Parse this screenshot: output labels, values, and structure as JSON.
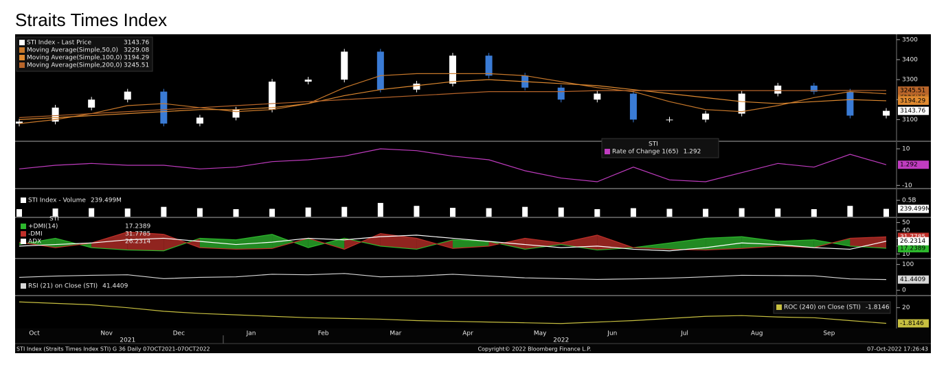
{
  "title": "Straits Times Index",
  "chart_data": [
    {
      "type": "candlestick",
      "name": "STI Index - Last Price",
      "color_up": "#ffffff",
      "color_down": "#3a7bd5",
      "open": [
        3080,
        3090,
        3160,
        3200,
        3240,
        3080,
        3110,
        3150,
        3290,
        3300,
        3440,
        3250,
        3280,
        3420,
        3320,
        3260,
        3200,
        3230,
        3100,
        3100,
        3130,
        3230,
        3270,
        3240,
        3120
      ],
      "close": [
        3090,
        3160,
        3200,
        3240,
        3080,
        3110,
        3150,
        3290,
        3300,
        3440,
        3250,
        3280,
        3420,
        3320,
        3260,
        3200,
        3230,
        3100,
        3100,
        3130,
        3230,
        3270,
        3240,
        3120,
        3143.76
      ],
      "series": [
        {
          "name": "Moving Average(Simple,50,0)",
          "color": "#c8782a",
          "values": [
            3080,
            3100,
            3130,
            3170,
            3180,
            3160,
            3140,
            3150,
            3180,
            3260,
            3320,
            3330,
            3330,
            3330,
            3320,
            3290,
            3260,
            3240,
            3190,
            3150,
            3140,
            3170,
            3210,
            3240,
            3229.08
          ]
        },
        {
          "name": "Moving Average(Simple,100,0)",
          "color": "#e08a30",
          "values": [
            3100,
            3110,
            3120,
            3130,
            3140,
            3150,
            3150,
            3160,
            3180,
            3220,
            3250,
            3270,
            3290,
            3300,
            3290,
            3280,
            3270,
            3250,
            3230,
            3210,
            3190,
            3180,
            3190,
            3200,
            3194.29
          ]
        },
        {
          "name": "Moving Average(Simple,200,0)",
          "color": "#b8652a",
          "values": [
            3110,
            3120,
            3130,
            3140,
            3150,
            3160,
            3170,
            3180,
            3190,
            3200,
            3210,
            3220,
            3230,
            3240,
            3240,
            3240,
            3245,
            3245,
            3245,
            3245,
            3245,
            3245,
            3245,
            3246,
            3245.51
          ]
        }
      ],
      "ylim": [
        2995,
        3520
      ],
      "yticks": [
        3100,
        3200,
        3300,
        3400,
        3500
      ]
    },
    {
      "type": "line",
      "legend_title": "STI",
      "series": [
        {
          "name": "Rate of Change 1(65)",
          "color": "#c03cc0",
          "values": [
            -1,
            1,
            2,
            1,
            1,
            -1,
            0,
            3,
            4,
            6,
            10,
            9,
            6,
            4,
            -2,
            -6,
            -8,
            0,
            -7,
            -8,
            -3,
            2,
            0,
            7,
            1.292
          ]
        }
      ],
      "ylim": [
        -11,
        13
      ],
      "yticks": [
        -10,
        10
      ]
    },
    {
      "type": "bar",
      "series": [
        {
          "name": "STI Index - Volume",
          "color": "#ffffff",
          "values": [
            230,
            250,
            260,
            250,
            300,
            260,
            230,
            240,
            280,
            300,
            420,
            330,
            270,
            260,
            300,
            280,
            230,
            260,
            240,
            240,
            260,
            250,
            230,
            330,
            239.499
          ],
          "value_labels": [
            null,
            null,
            null,
            null,
            null,
            null,
            null,
            null,
            null,
            null,
            null,
            null,
            null,
            null,
            null,
            null,
            null,
            null,
            null,
            null,
            null,
            null,
            null,
            null,
            "239.499M"
          ]
        }
      ],
      "ylim": [
        0,
        795
      ],
      "yticks": [
        {
          "value": 500,
          "label": "0.5B"
        }
      ]
    },
    {
      "type": "line",
      "legend_title": "STI",
      "fill_between": true,
      "series": [
        {
          "name": "+DMI(14)",
          "color": "#2db82d",
          "values": [
            22,
            30,
            18,
            15,
            14,
            30,
            28,
            35,
            18,
            30,
            20,
            16,
            28,
            26,
            16,
            22,
            15,
            18,
            24,
            30,
            32,
            26,
            28,
            20,
            17.2389
          ]
        },
        {
          "name": "-DMI",
          "color": "#c0302a",
          "values": [
            25,
            18,
            24,
            38,
            35,
            18,
            16,
            17,
            30,
            16,
            36,
            30,
            17,
            20,
            30,
            24,
            34,
            18,
            16,
            15,
            17,
            20,
            18,
            30,
            31.7785
          ]
        },
        {
          "name": "ADX",
          "color": "#ffffff",
          "values": [
            20,
            22,
            24,
            28,
            30,
            26,
            22,
            25,
            30,
            28,
            32,
            34,
            30,
            26,
            22,
            18,
            20,
            16,
            14,
            18,
            24,
            22,
            18,
            16,
            26.2314
          ]
        }
      ],
      "ylim": [
        5,
        54
      ],
      "yticks": [
        10,
        20,
        30,
        40,
        50
      ]
    },
    {
      "type": "line",
      "series": [
        {
          "name": "RSI (21)  on Close (STI)",
          "color": "#d8d8d8",
          "values": [
            50,
            55,
            58,
            60,
            45,
            50,
            52,
            62,
            60,
            65,
            52,
            55,
            62,
            55,
            48,
            45,
            42,
            44,
            47,
            52,
            58,
            57,
            56,
            44,
            41.4409
          ]
        }
      ],
      "ylim": [
        -18,
        115
      ],
      "yticks": [
        0,
        100
      ]
    },
    {
      "type": "line",
      "series": [
        {
          "name": "ROC (240)  on Close (STI)",
          "color": "#c8c040",
          "values": [
            28,
            26,
            24,
            20,
            15,
            12,
            10,
            8,
            6,
            5,
            4,
            2,
            1,
            0,
            -1,
            -2,
            0,
            2,
            5,
            8,
            9,
            7,
            6,
            2,
            -1.8146
          ]
        }
      ],
      "ylim": [
        -8,
        34
      ],
      "yticks": [
        20
      ]
    }
  ],
  "x_axis": {
    "categories": [
      "Oct",
      null,
      "Nov",
      null,
      "Dec",
      null,
      "Jan",
      null,
      "Feb",
      null,
      "Mar",
      null,
      "Apr",
      null,
      "May",
      null,
      "Jun",
      null,
      "Jul",
      null,
      "Aug",
      null,
      "Sep",
      null,
      null
    ],
    "years": [
      "2021",
      "2022"
    ]
  },
  "footer": {
    "left": "STI Index (Straits Times Index STI) G 36  Daily 07OCT2021-07OCT2022",
    "center": "Copyright© 2022 Bloomberg Finance L.P.",
    "right": "07-Oct-2022 17:26:43"
  }
}
